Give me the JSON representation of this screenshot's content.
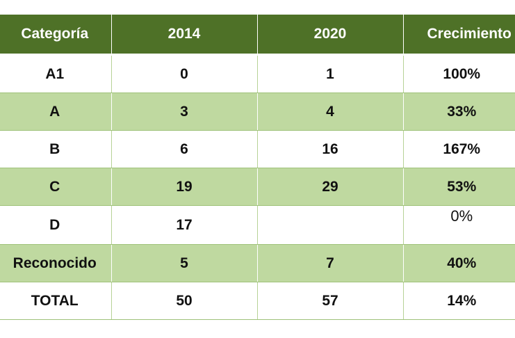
{
  "table": {
    "headers": [
      "Categoría",
      "2014",
      "2020",
      "Crecimiento"
    ],
    "rows": [
      {
        "categoria": "A1",
        "y2014": "0",
        "y2020": "1",
        "crecimiento": "100%"
      },
      {
        "categoria": "A",
        "y2014": "3",
        "y2020": "4",
        "crecimiento": "33%"
      },
      {
        "categoria": "B",
        "y2014": "6",
        "y2020": "16",
        "crecimiento": "167%"
      },
      {
        "categoria": "C",
        "y2014": "19",
        "y2020": "29",
        "crecimiento": "53%"
      },
      {
        "categoria": "D",
        "y2014": "17",
        "y2020": "",
        "crecimiento": "0%"
      },
      {
        "categoria": "Reconocido",
        "y2014": "5",
        "y2020": "7",
        "crecimiento": "40%"
      },
      {
        "categoria": "TOTAL",
        "y2014": "50",
        "y2020": "57",
        "crecimiento": "14%"
      }
    ]
  },
  "colors": {
    "header_bg": "#4e7127",
    "header_text": "#ffffff",
    "band_bg": "#bfd9a0",
    "plain_bg": "#ffffff"
  }
}
